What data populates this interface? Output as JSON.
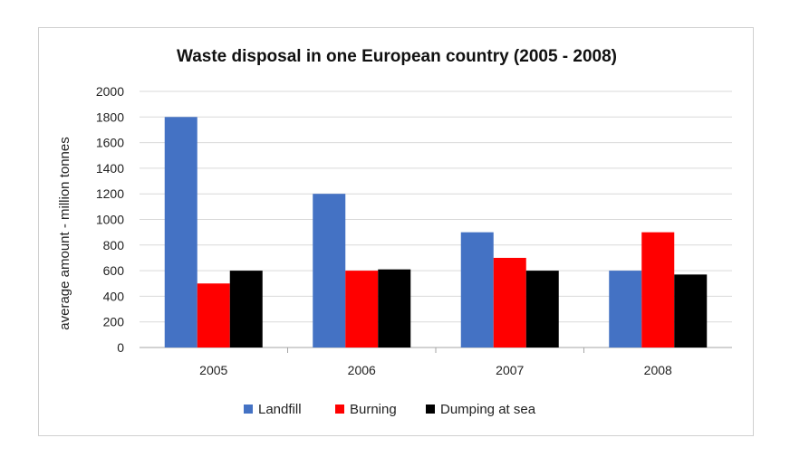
{
  "chart_data": {
    "type": "bar",
    "title": "Waste disposal in one European country (2005 - 2008)",
    "ylabel": "average amount - million tonnes",
    "xlabel": "",
    "categories": [
      "2005",
      "2006",
      "2007",
      "2008"
    ],
    "ylim": [
      0,
      2000
    ],
    "yticks": [
      "0",
      "200",
      "400",
      "600",
      "800",
      "1000",
      "1200",
      "1400",
      "1600",
      "1800",
      "2000"
    ],
    "grid": true,
    "legend_position": "bottom",
    "series": [
      {
        "name": "Landfill",
        "color": "#4472C4",
        "values": [
          1800,
          1200,
          900,
          600
        ]
      },
      {
        "name": "Burning",
        "color": "#FF0000",
        "values": [
          500,
          600,
          700,
          900
        ]
      },
      {
        "name": "Dumping at sea",
        "color": "#000000",
        "values": [
          600,
          610,
          600,
          570
        ]
      }
    ]
  }
}
